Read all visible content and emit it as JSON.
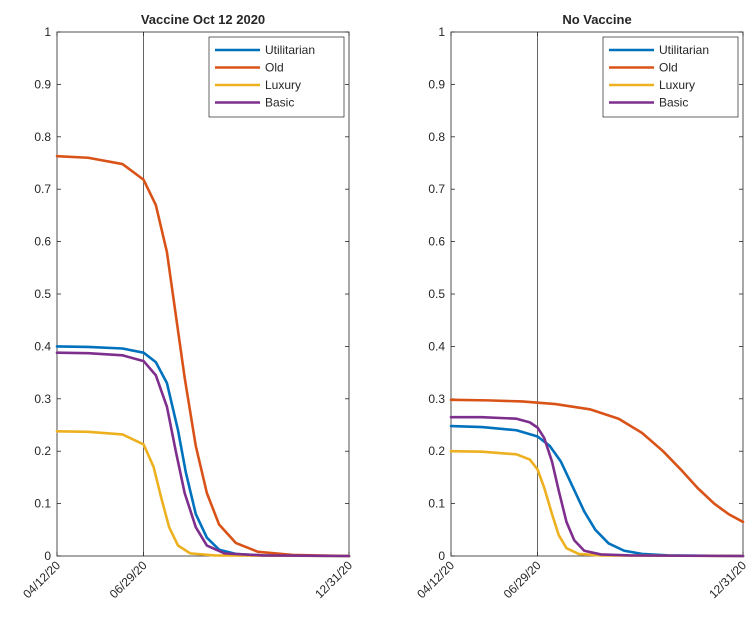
{
  "chart_data": [
    {
      "type": "line",
      "title": "Vaccine Oct 12 2020",
      "xlabel": "",
      "ylabel": "",
      "ylim": [
        0,
        1
      ],
      "yticks": [
        "0",
        "0.1",
        "0.2",
        "0.3",
        "0.4",
        "0.5",
        "0.6",
        "0.7",
        "0.8",
        "0.9",
        "1"
      ],
      "xrange": [
        "2020-04-12",
        "2020-12-31"
      ],
      "xticks": [
        {
          "date": "2020-04-12",
          "label": "04/12/20"
        },
        {
          "date": "2020-06-29",
          "label": "06/29/20"
        },
        {
          "date": "2020-12-31",
          "label": "12/31/20"
        }
      ],
      "vline": "2020-06-29",
      "grid": false,
      "legend_position": "top-right",
      "series": [
        {
          "name": "Utilitarian",
          "color": "#0072BD",
          "points": [
            [
              "2020-04-12",
              0.4
            ],
            [
              "2020-05-10",
              0.399
            ],
            [
              "2020-06-10",
              0.396
            ],
            [
              "2020-06-29",
              0.388
            ],
            [
              "2020-07-10",
              0.37
            ],
            [
              "2020-07-20",
              0.33
            ],
            [
              "2020-07-30",
              0.24
            ],
            [
              "2020-08-06",
              0.16
            ],
            [
              "2020-08-15",
              0.08
            ],
            [
              "2020-08-25",
              0.035
            ],
            [
              "2020-09-05",
              0.012
            ],
            [
              "2020-09-20",
              0.004
            ],
            [
              "2020-10-15",
              0.001
            ],
            [
              "2020-12-31",
              0.0
            ]
          ]
        },
        {
          "name": "Old",
          "color": "#D95319",
          "points": [
            [
              "2020-04-12",
              0.763
            ],
            [
              "2020-05-10",
              0.76
            ],
            [
              "2020-06-10",
              0.748
            ],
            [
              "2020-06-29",
              0.718
            ],
            [
              "2020-07-10",
              0.67
            ],
            [
              "2020-07-20",
              0.58
            ],
            [
              "2020-07-28",
              0.46
            ],
            [
              "2020-08-05",
              0.34
            ],
            [
              "2020-08-15",
              0.21
            ],
            [
              "2020-08-25",
              0.12
            ],
            [
              "2020-09-05",
              0.06
            ],
            [
              "2020-09-20",
              0.025
            ],
            [
              "2020-10-10",
              0.008
            ],
            [
              "2020-11-10",
              0.002
            ],
            [
              "2020-12-31",
              0.0
            ]
          ]
        },
        {
          "name": "Luxury",
          "color": "#EDB120",
          "points": [
            [
              "2020-04-12",
              0.238
            ],
            [
              "2020-05-10",
              0.237
            ],
            [
              "2020-06-10",
              0.232
            ],
            [
              "2020-06-29",
              0.213
            ],
            [
              "2020-07-08",
              0.17
            ],
            [
              "2020-07-15",
              0.11
            ],
            [
              "2020-07-22",
              0.055
            ],
            [
              "2020-07-30",
              0.02
            ],
            [
              "2020-08-10",
              0.005
            ],
            [
              "2020-09-01",
              0.001
            ],
            [
              "2020-12-31",
              0.0
            ]
          ]
        },
        {
          "name": "Basic",
          "color": "#7E2F8E",
          "points": [
            [
              "2020-04-12",
              0.388
            ],
            [
              "2020-05-10",
              0.387
            ],
            [
              "2020-06-10",
              0.383
            ],
            [
              "2020-06-29",
              0.372
            ],
            [
              "2020-07-10",
              0.345
            ],
            [
              "2020-07-20",
              0.285
            ],
            [
              "2020-07-28",
              0.2
            ],
            [
              "2020-08-05",
              0.12
            ],
            [
              "2020-08-15",
              0.055
            ],
            [
              "2020-08-25",
              0.02
            ],
            [
              "2020-09-10",
              0.005
            ],
            [
              "2020-10-15",
              0.001
            ],
            [
              "2020-12-31",
              0.0
            ]
          ]
        }
      ]
    },
    {
      "type": "line",
      "title": "No Vaccine",
      "xlabel": "",
      "ylabel": "",
      "ylim": [
        0,
        1
      ],
      "yticks": [
        "0",
        "0.1",
        "0.2",
        "0.3",
        "0.4",
        "0.5",
        "0.6",
        "0.7",
        "0.8",
        "0.9",
        "1"
      ],
      "xrange": [
        "2020-04-12",
        "2020-12-31"
      ],
      "xticks": [
        {
          "date": "2020-04-12",
          "label": "04/12/20"
        },
        {
          "date": "2020-06-29",
          "label": "06/29/20"
        },
        {
          "date": "2020-12-31",
          "label": "12/31/20"
        }
      ],
      "vline": "2020-06-29",
      "grid": false,
      "legend_position": "top-right",
      "series": [
        {
          "name": "Utilitarian",
          "color": "#0072BD",
          "points": [
            [
              "2020-04-12",
              0.248
            ],
            [
              "2020-05-10",
              0.246
            ],
            [
              "2020-06-10",
              0.24
            ],
            [
              "2020-06-29",
              0.228
            ],
            [
              "2020-07-10",
              0.21
            ],
            [
              "2020-07-20",
              0.18
            ],
            [
              "2020-07-30",
              0.135
            ],
            [
              "2020-08-10",
              0.085
            ],
            [
              "2020-08-20",
              0.05
            ],
            [
              "2020-09-01",
              0.024
            ],
            [
              "2020-09-15",
              0.01
            ],
            [
              "2020-10-01",
              0.004
            ],
            [
              "2020-10-25",
              0.001
            ],
            [
              "2020-12-31",
              0.0
            ]
          ]
        },
        {
          "name": "Old",
          "color": "#D95319",
          "points": [
            [
              "2020-04-12",
              0.298
            ],
            [
              "2020-05-15",
              0.297
            ],
            [
              "2020-06-15",
              0.295
            ],
            [
              "2020-07-15",
              0.29
            ],
            [
              "2020-08-15",
              0.28
            ],
            [
              "2020-09-10",
              0.262
            ],
            [
              "2020-10-01",
              0.235
            ],
            [
              "2020-10-20",
              0.2
            ],
            [
              "2020-11-05",
              0.165
            ],
            [
              "2020-11-20",
              0.13
            ],
            [
              "2020-12-05",
              0.1
            ],
            [
              "2020-12-18",
              0.08
            ],
            [
              "2020-12-31",
              0.065
            ]
          ]
        },
        {
          "name": "Luxury",
          "color": "#EDB120",
          "points": [
            [
              "2020-04-12",
              0.2
            ],
            [
              "2020-05-10",
              0.199
            ],
            [
              "2020-06-10",
              0.194
            ],
            [
              "2020-06-22",
              0.184
            ],
            [
              "2020-06-29",
              0.165
            ],
            [
              "2020-07-05",
              0.13
            ],
            [
              "2020-07-12",
              0.08
            ],
            [
              "2020-07-18",
              0.04
            ],
            [
              "2020-07-25",
              0.015
            ],
            [
              "2020-08-05",
              0.004
            ],
            [
              "2020-08-25",
              0.001
            ],
            [
              "2020-12-31",
              0.0
            ]
          ]
        },
        {
          "name": "Basic",
          "color": "#7E2F8E",
          "points": [
            [
              "2020-04-12",
              0.265
            ],
            [
              "2020-05-10",
              0.265
            ],
            [
              "2020-06-10",
              0.262
            ],
            [
              "2020-06-22",
              0.255
            ],
            [
              "2020-06-29",
              0.245
            ],
            [
              "2020-07-05",
              0.225
            ],
            [
              "2020-07-12",
              0.18
            ],
            [
              "2020-07-18",
              0.125
            ],
            [
              "2020-07-25",
              0.065
            ],
            [
              "2020-08-01",
              0.03
            ],
            [
              "2020-08-10",
              0.01
            ],
            [
              "2020-08-25",
              0.003
            ],
            [
              "2020-09-20",
              0.001
            ],
            [
              "2020-12-31",
              0.0
            ]
          ]
        }
      ]
    }
  ]
}
